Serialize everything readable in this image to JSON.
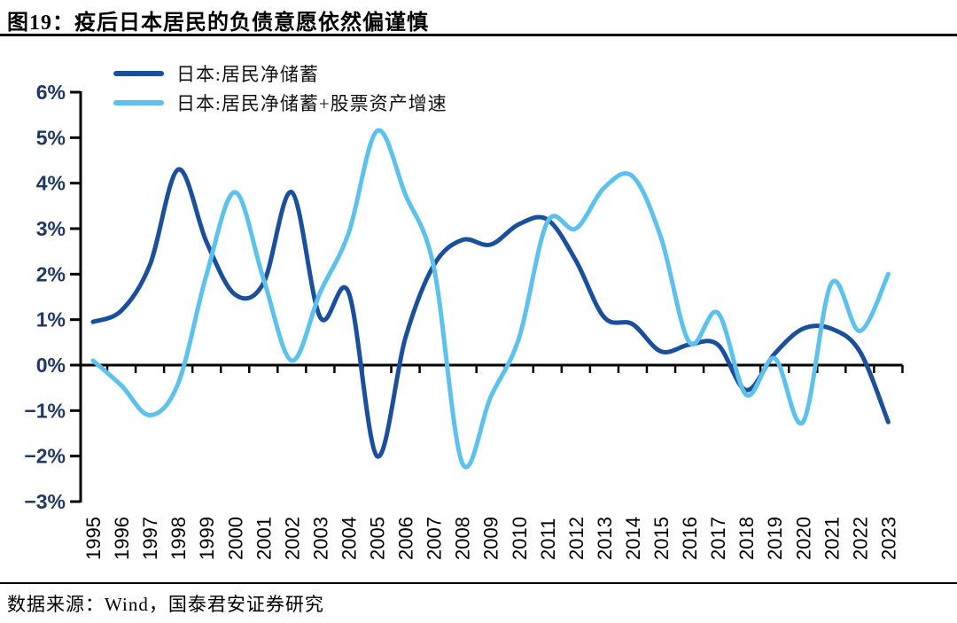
{
  "title": "图19：疫后日本居民的负债意愿依然偏谨慎",
  "source": "数据来源：Wind，国泰君安证券研究",
  "legend": [
    {
      "label": "日本:居民净储蓄",
      "color": "#1a4f9b"
    },
    {
      "label": "日本:居民净储蓄+股票资产增速",
      "color": "#5cc1ec"
    }
  ],
  "chart_data": {
    "type": "line",
    "x": [
      1995,
      1996,
      1997,
      1998,
      1999,
      2000,
      2001,
      2002,
      2003,
      2004,
      2005,
      2006,
      2007,
      2008,
      2009,
      2010,
      2011,
      2012,
      2013,
      2014,
      2015,
      2016,
      2017,
      2018,
      2019,
      2020,
      2021,
      2022,
      2023
    ],
    "xtick_labels": [
      "1995",
      "1996",
      "1997",
      "1998",
      "1999",
      "2000",
      "2001",
      "2002",
      "2003",
      "2004",
      "2005",
      "2006",
      "2007",
      "2008",
      "2009",
      "2010",
      "2011",
      "2012",
      "2013",
      "2014",
      "2015",
      "2016",
      "2017",
      "2018",
      "2019",
      "2020",
      "2021",
      "2022",
      "2023"
    ],
    "series": [
      {
        "name": "日本:居民净储蓄",
        "color": "#1a4f9b",
        "values": [
          0.95,
          1.2,
          2.2,
          4.3,
          2.7,
          1.55,
          1.8,
          3.8,
          1.05,
          1.6,
          -2.0,
          0.6,
          2.2,
          2.75,
          2.65,
          3.1,
          3.2,
          2.3,
          1.05,
          0.9,
          0.3,
          0.45,
          0.45,
          -0.55,
          0.25,
          0.8,
          0.8,
          0.3,
          -1.25
        ]
      },
      {
        "name": "日本:居民净储蓄+股票资产增速",
        "color": "#5cc1ec",
        "values": [
          0.1,
          -0.45,
          -1.1,
          -0.4,
          2.0,
          3.8,
          1.9,
          0.1,
          1.6,
          2.9,
          5.15,
          3.75,
          2.15,
          -2.15,
          -0.7,
          0.6,
          3.15,
          3.0,
          3.9,
          4.15,
          2.8,
          0.5,
          1.15,
          -0.65,
          0.15,
          -1.25,
          1.8,
          0.75,
          2.0
        ]
      }
    ],
    "ylim": [
      -3,
      6
    ],
    "ytick_values": [
      6,
      5,
      4,
      3,
      2,
      1,
      0,
      -1,
      -2,
      -3
    ],
    "ytick_labels": [
      "6%",
      "5%",
      "4%",
      "3%",
      "2%",
      "1%",
      "0%",
      "−1%",
      "−2%",
      "−3%"
    ],
    "ytick_color": "#1f3864",
    "xtick_color": "#000000",
    "axis_color": "#000000",
    "grid": false,
    "legend_position": "top-left",
    "title": "图19：疫后日本居民的负债意愿依然偏谨慎",
    "xlabel": "",
    "ylabel": ""
  }
}
